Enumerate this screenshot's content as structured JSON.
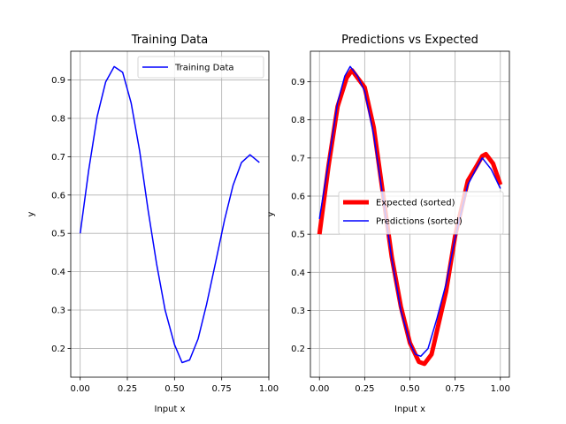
{
  "chart_data": [
    {
      "type": "line",
      "title": "Training Data",
      "xlabel": "Input x",
      "ylabel": "y",
      "xlim": [
        -0.05,
        1.0
      ],
      "ylim": [
        0.125,
        0.975
      ],
      "xticks": [
        0.0,
        0.25,
        0.5,
        0.75,
        1.0
      ],
      "xtick_labels": [
        "0.00",
        "0.25",
        "0.50",
        "0.75",
        "1.00"
      ],
      "yticks": [
        0.2,
        0.3,
        0.4,
        0.5,
        0.6,
        0.7,
        0.8,
        0.9
      ],
      "ytick_labels": [
        "0.2",
        "0.3",
        "0.4",
        "0.5",
        "0.6",
        "0.7",
        "0.8",
        "0.9"
      ],
      "grid": true,
      "legend": "upper right",
      "series": [
        {
          "name": "Training Data",
          "color": "#0000ff",
          "linewidth": 1.5,
          "x": [
            0.0,
            0.045,
            0.09,
            0.135,
            0.18,
            0.225,
            0.27,
            0.315,
            0.36,
            0.405,
            0.45,
            0.5,
            0.54,
            0.58,
            0.625,
            0.67,
            0.72,
            0.765,
            0.81,
            0.855,
            0.9,
            0.95
          ],
          "y": [
            0.5,
            0.665,
            0.805,
            0.895,
            0.935,
            0.92,
            0.84,
            0.715,
            0.56,
            0.42,
            0.3,
            0.21,
            0.163,
            0.17,
            0.225,
            0.315,
            0.43,
            0.535,
            0.625,
            0.685,
            0.705,
            0.685
          ]
        }
      ]
    },
    {
      "type": "line",
      "title": "Predictions vs Expected",
      "xlabel": "Input x",
      "ylabel": "y",
      "xlim": [
        -0.05,
        1.05
      ],
      "ylim": [
        0.125,
        0.98
      ],
      "xticks": [
        0.0,
        0.25,
        0.5,
        0.75,
        1.0
      ],
      "xtick_labels": [
        "0.00",
        "0.25",
        "0.50",
        "0.75",
        "1.00"
      ],
      "yticks": [
        0.2,
        0.3,
        0.4,
        0.5,
        0.6,
        0.7,
        0.8,
        0.9
      ],
      "ytick_labels": [
        "0.2",
        "0.3",
        "0.4",
        "0.5",
        "0.6",
        "0.7",
        "0.8",
        "0.9"
      ],
      "grid": true,
      "legend": "center right",
      "series": [
        {
          "name": "Expected (sorted)",
          "color": "#ff0000",
          "linewidth": 5,
          "x": [
            0.0,
            0.05,
            0.1,
            0.15,
            0.18,
            0.25,
            0.3,
            0.35,
            0.4,
            0.45,
            0.5,
            0.55,
            0.58,
            0.62,
            0.7,
            0.75,
            0.82,
            0.87,
            0.9,
            0.92,
            0.96,
            1.0
          ],
          "y": [
            0.5,
            0.68,
            0.835,
            0.91,
            0.93,
            0.885,
            0.78,
            0.61,
            0.44,
            0.31,
            0.215,
            0.165,
            0.16,
            0.185,
            0.35,
            0.495,
            0.64,
            0.68,
            0.705,
            0.71,
            0.685,
            0.63
          ]
        },
        {
          "name": "Predictions (sorted)",
          "color": "#0000ff",
          "linewidth": 1.5,
          "x": [
            0.0,
            0.05,
            0.1,
            0.14,
            0.17,
            0.21,
            0.25,
            0.3,
            0.35,
            0.4,
            0.45,
            0.5,
            0.53,
            0.56,
            0.6,
            0.65,
            0.7,
            0.75,
            0.82,
            0.87,
            0.9,
            0.95,
            1.0
          ],
          "y": [
            0.54,
            0.69,
            0.845,
            0.915,
            0.94,
            0.915,
            0.875,
            0.76,
            0.6,
            0.435,
            0.3,
            0.215,
            0.185,
            0.18,
            0.2,
            0.28,
            0.37,
            0.49,
            0.63,
            0.675,
            0.7,
            0.67,
            0.62
          ]
        }
      ]
    }
  ]
}
